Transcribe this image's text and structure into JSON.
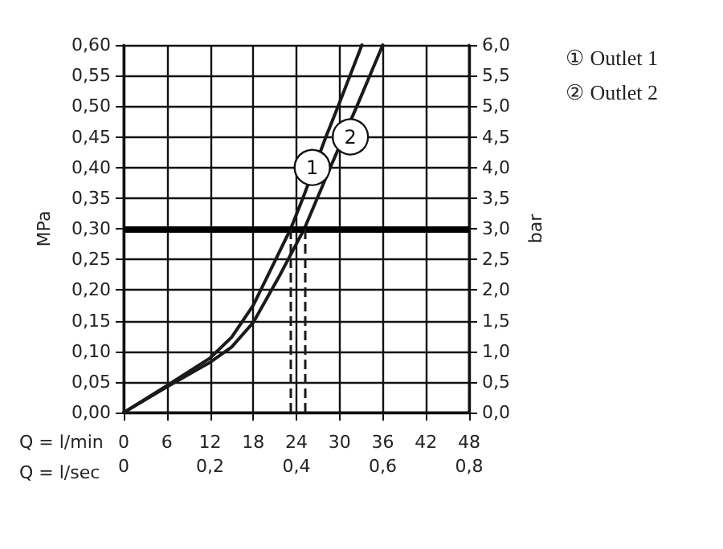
{
  "chart_data": {
    "type": "line",
    "xlabel": "Q = l/min",
    "x2label": "Q = l/sec",
    "ylabel": "MPa",
    "y2label": "bar",
    "xlim": [
      0,
      48
    ],
    "xticks": [
      0,
      6,
      12,
      18,
      24,
      30,
      36,
      42,
      48
    ],
    "x2lim": [
      0,
      0.8
    ],
    "x2ticks": [
      {
        "value": 0,
        "label": "0"
      },
      {
        "value": 0.2,
        "label": "0,2"
      },
      {
        "value": 0.4,
        "label": "0,4"
      },
      {
        "value": 0.6,
        "label": "0,6"
      },
      {
        "value": 0.8,
        "label": "0,8"
      }
    ],
    "ylim": [
      0,
      0.6
    ],
    "yticks": [
      {
        "value": 0,
        "label": "0,00"
      },
      {
        "value": 0.05,
        "label": "0,05"
      },
      {
        "value": 0.1,
        "label": "0,10"
      },
      {
        "value": 0.15,
        "label": "0,15"
      },
      {
        "value": 0.2,
        "label": "0,20"
      },
      {
        "value": 0.25,
        "label": "0,25"
      },
      {
        "value": 0.3,
        "label": "0,30"
      },
      {
        "value": 0.35,
        "label": "0,35"
      },
      {
        "value": 0.4,
        "label": "0,40"
      },
      {
        "value": 0.45,
        "label": "0,45"
      },
      {
        "value": 0.5,
        "label": "0,50"
      },
      {
        "value": 0.55,
        "label": "0,55"
      },
      {
        "value": 0.6,
        "label": "0,60"
      }
    ],
    "y2lim": [
      0,
      6
    ],
    "y2ticks": [
      {
        "value": 0,
        "label": "0,0"
      },
      {
        "value": 0.5,
        "label": "0,5"
      },
      {
        "value": 1,
        "label": "1,0"
      },
      {
        "value": 1.5,
        "label": "1,5"
      },
      {
        "value": 2,
        "label": "2,0"
      },
      {
        "value": 2.5,
        "label": "2,5"
      },
      {
        "value": 3,
        "label": "3,0"
      },
      {
        "value": 3.5,
        "label": "3,5"
      },
      {
        "value": 4,
        "label": "4,0"
      },
      {
        "value": 4.5,
        "label": "4,5"
      },
      {
        "value": 5,
        "label": "5,0"
      },
      {
        "value": 5.5,
        "label": "5,5"
      },
      {
        "value": 6,
        "label": "6,0"
      }
    ],
    "series": [
      {
        "name": "① Outlet 1",
        "color": "#1a1a1a",
        "x": [
          0,
          6,
          12,
          15,
          18,
          20.5,
          23.2,
          24.9,
          28.1,
          29.8,
          33.1
        ],
        "values": [
          0,
          0.044,
          0.089,
          0.123,
          0.175,
          0.235,
          0.3,
          0.35,
          0.45,
          0.5,
          0.6
        ]
      },
      {
        "name": "② Outlet 2",
        "color": "#1a1a1a",
        "x": [
          0,
          6,
          12,
          15,
          18,
          21.5,
          25.1,
          28.7,
          32.4,
          36
        ],
        "values": [
          0,
          0.042,
          0.082,
          0.107,
          0.147,
          0.22,
          0.3,
          0.4,
          0.5,
          0.6
        ]
      }
    ],
    "annotations": [
      {
        "text": "1",
        "x": 26.2,
        "y": 0.4
      },
      {
        "text": "2",
        "x": 31.5,
        "y": 0.45
      }
    ],
    "ref_lines": [
      {
        "axis": "y",
        "value": 0.3,
        "color": "#000000",
        "line_style": "solid"
      },
      {
        "axis": "x",
        "value": 23.2,
        "color": "#1a1a1a",
        "line_style": "dashed"
      },
      {
        "axis": "x",
        "value": 25.1,
        "color": "#1a1a1a",
        "line_style": "dashed"
      }
    ],
    "grid": true,
    "legend": "top right",
    "marker": "none",
    "line_style": "solid"
  }
}
